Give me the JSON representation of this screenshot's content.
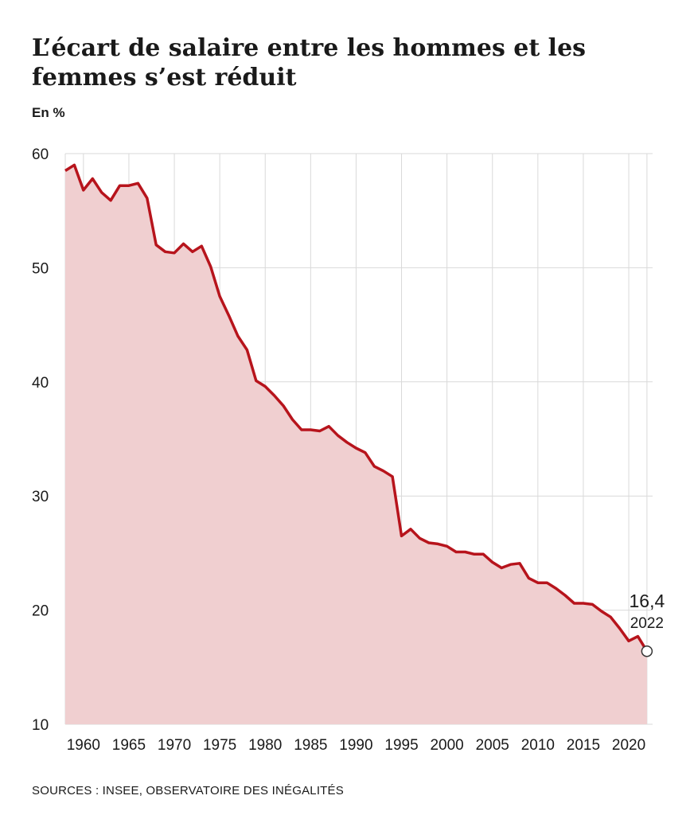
{
  "title": "L’écart de salaire entre les hommes et les femmes s’est réduit",
  "subtitle": "En %",
  "source": "SOURCES :  INSEE, OBSERVATOIRE DES INÉGALITÉS",
  "colors": {
    "line": "#b7141c",
    "area": "#f0cfd0",
    "grid": "#d9d9d9",
    "text": "#1a1a1a"
  },
  "chart_data": {
    "type": "area",
    "x": [
      1958,
      1959,
      1960,
      1961,
      1962,
      1963,
      1964,
      1965,
      1966,
      1967,
      1968,
      1969,
      1970,
      1971,
      1972,
      1973,
      1974,
      1975,
      1976,
      1977,
      1978,
      1979,
      1980,
      1981,
      1982,
      1983,
      1984,
      1985,
      1986,
      1987,
      1988,
      1989,
      1990,
      1991,
      1992,
      1993,
      1994,
      1995,
      1996,
      1997,
      1998,
      1999,
      2000,
      2001,
      2002,
      2003,
      2004,
      2005,
      2006,
      2007,
      2008,
      2009,
      2010,
      2011,
      2012,
      2013,
      2014,
      2015,
      2016,
      2017,
      2018,
      2019,
      2020,
      2021,
      2022
    ],
    "values": [
      58.5,
      59.0,
      56.8,
      57.8,
      56.6,
      55.9,
      57.2,
      57.2,
      57.4,
      56.1,
      52.0,
      51.4,
      51.3,
      52.1,
      51.4,
      51.9,
      50.1,
      47.5,
      45.8,
      44.0,
      42.8,
      40.1,
      39.6,
      38.8,
      37.9,
      36.7,
      35.8,
      35.8,
      35.7,
      36.1,
      35.3,
      34.7,
      34.2,
      33.8,
      32.6,
      32.2,
      31.7,
      26.5,
      27.1,
      26.3,
      25.9,
      25.8,
      25.6,
      25.1,
      25.1,
      24.9,
      24.9,
      24.2,
      23.7,
      24.0,
      24.1,
      22.8,
      22.4,
      22.4,
      21.9,
      21.3,
      20.6,
      20.6,
      20.5,
      19.9,
      19.4,
      18.4,
      17.3,
      17.7,
      16.4
    ],
    "xlabel": "",
    "ylabel": "",
    "ylim": [
      10,
      60
    ],
    "yticks": [
      10,
      20,
      30,
      40,
      50,
      60
    ],
    "xticks": [
      1960,
      1965,
      1970,
      1975,
      1980,
      1985,
      1990,
      1995,
      2000,
      2005,
      2010,
      2015,
      2020
    ],
    "grid": true,
    "last_point": {
      "value_label": "16,4",
      "year_label": "2022"
    }
  }
}
